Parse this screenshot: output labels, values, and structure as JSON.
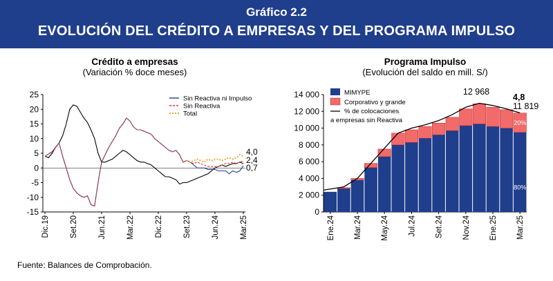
{
  "header": {
    "chart_number": "Gráfico 2.2",
    "title": "EVOLUCIÓN DEL CRÉDITO A EMPRESAS Y DEL PROGRAMA IMPULSO"
  },
  "footer": {
    "source": "Fuente: Balances de Comprobación."
  },
  "colors": {
    "banner": "#1f3e8c",
    "navy": "#1f3e8c",
    "salmon": "#f26a6a",
    "red": "#e8303a",
    "orange": "#f4a226"
  },
  "chart_data": [
    {
      "type": "line",
      "title": "Crédito a empresas",
      "subtitle": "(Variación % doce meses)",
      "ylim": [
        -15,
        25
      ],
      "yticks": [
        "25",
        "20",
        "15",
        "10",
        "5",
        "0",
        "-5",
        "-10",
        "-15"
      ],
      "xticks": [
        "Dic.19",
        "Set.20",
        "Jun.21",
        "Mar.22",
        "Dic.22",
        "Set.23",
        "Jun.24",
        "Mar.25"
      ],
      "legend_position": "top-right",
      "series": [
        {
          "name": "Sin Reactiva ni Impulso",
          "color": "#1f3e8c",
          "points": [
            [
              0,
              4
            ],
            [
              2,
              5.5
            ],
            [
              3,
              7
            ],
            [
              4,
              8.5
            ],
            [
              5,
              4
            ],
            [
              6,
              0
            ],
            [
              7,
              -4
            ],
            [
              8,
              -7
            ],
            [
              9,
              -8.5
            ],
            [
              10,
              -9.5
            ],
            [
              11,
              -10
            ],
            [
              12,
              -9.5
            ],
            [
              13,
              -12.5
            ],
            [
              14,
              -13
            ],
            [
              15,
              -5
            ],
            [
              16,
              2
            ],
            [
              17,
              4.5
            ],
            [
              18,
              7
            ],
            [
              19,
              9
            ],
            [
              20,
              11
            ],
            [
              21,
              13.5
            ],
            [
              22,
              15
            ],
            [
              23,
              17
            ],
            [
              24,
              16
            ],
            [
              25,
              14
            ],
            [
              26,
              13
            ],
            [
              27,
              13
            ],
            [
              28,
              12.5
            ],
            [
              29,
              12
            ],
            [
              30,
              11.5
            ],
            [
              31,
              10
            ],
            [
              32,
              9
            ],
            [
              33,
              8
            ],
            [
              34,
              7
            ],
            [
              35,
              6
            ],
            [
              36,
              5.5
            ],
            [
              37,
              6
            ],
            [
              38,
              4.5
            ],
            [
              39,
              2
            ],
            [
              40,
              2.5
            ],
            [
              41,
              2
            ],
            [
              42,
              1
            ],
            [
              43,
              0
            ],
            [
              44,
              0
            ],
            [
              45,
              0
            ],
            [
              46,
              -0.5
            ],
            [
              47,
              -0.5
            ],
            [
              48,
              -0.5
            ],
            [
              49,
              -1
            ],
            [
              50,
              -1
            ],
            [
              51,
              -1
            ],
            [
              52,
              -2
            ],
            [
              53,
              -1
            ],
            [
              54,
              -1.5
            ],
            [
              55,
              -1
            ],
            [
              56,
              0.7
            ]
          ]
        },
        {
          "name": "Sin Reactiva",
          "color": "#e8303a",
          "points": [
            [
              0,
              4
            ],
            [
              2,
              5.5
            ],
            [
              3,
              7
            ],
            [
              4,
              8.5
            ],
            [
              5,
              4
            ],
            [
              6,
              0
            ],
            [
              7,
              -4
            ],
            [
              8,
              -7
            ],
            [
              9,
              -8.5
            ],
            [
              10,
              -9.5
            ],
            [
              11,
              -10
            ],
            [
              12,
              -9.5
            ],
            [
              13,
              -12.5
            ],
            [
              14,
              -13
            ],
            [
              15,
              -5
            ],
            [
              16,
              2
            ],
            [
              17,
              4.5
            ],
            [
              18,
              7
            ],
            [
              19,
              9
            ],
            [
              20,
              11
            ],
            [
              21,
              13.5
            ],
            [
              22,
              15
            ],
            [
              23,
              17
            ],
            [
              24,
              16
            ],
            [
              25,
              14
            ],
            [
              26,
              13
            ],
            [
              27,
              13
            ],
            [
              28,
              12.5
            ],
            [
              29,
              12
            ],
            [
              30,
              11.5
            ],
            [
              31,
              10
            ],
            [
              32,
              9
            ],
            [
              33,
              8
            ],
            [
              34,
              7
            ],
            [
              35,
              6
            ],
            [
              36,
              5.5
            ],
            [
              37,
              6
            ],
            [
              38,
              4.5
            ],
            [
              39,
              2
            ],
            [
              40,
              2.5
            ],
            [
              41,
              2
            ],
            [
              42,
              1.5
            ],
            [
              43,
              2
            ],
            [
              44,
              1.5
            ],
            [
              45,
              1
            ],
            [
              46,
              0.5
            ],
            [
              47,
              0.5
            ],
            [
              48,
              0.5
            ],
            [
              49,
              0.5
            ],
            [
              50,
              1
            ],
            [
              51,
              1.5
            ],
            [
              52,
              1.5
            ],
            [
              53,
              2
            ],
            [
              54,
              1.5
            ],
            [
              55,
              2
            ],
            [
              56,
              2.4
            ]
          ]
        },
        {
          "name": "Total",
          "color": "#f4a226",
          "points": [
            [
              40,
              2.5
            ],
            [
              41,
              2
            ],
            [
              42,
              2.5
            ],
            [
              43,
              3
            ],
            [
              44,
              2.5
            ],
            [
              45,
              2
            ],
            [
              46,
              3
            ],
            [
              47,
              2.5
            ],
            [
              48,
              3
            ],
            [
              49,
              3
            ],
            [
              50,
              2.5
            ],
            [
              51,
              3
            ],
            [
              52,
              3.5
            ],
            [
              53,
              3
            ],
            [
              54,
              3.5
            ],
            [
              55,
              4.5
            ],
            [
              56,
              4.0
            ]
          ]
        },
        {
          "name": "",
          "color": "#000000",
          "points": [
            [
              0,
              4
            ],
            [
              1,
              3.5
            ],
            [
              2,
              5
            ],
            [
              3,
              7
            ],
            [
              4,
              8.5
            ],
            [
              5,
              11
            ],
            [
              6,
              15
            ],
            [
              7,
              20
            ],
            [
              8,
              21.5
            ],
            [
              9,
              21
            ],
            [
              10,
              19
            ],
            [
              11,
              17
            ],
            [
              12,
              15.5
            ],
            [
              13,
              13
            ],
            [
              14,
              10
            ],
            [
              15,
              5
            ],
            [
              16,
              2
            ],
            [
              17,
              2
            ],
            [
              18,
              2.5
            ],
            [
              19,
              3
            ],
            [
              20,
              4
            ],
            [
              21,
              5
            ],
            [
              22,
              6
            ],
            [
              23,
              5.5
            ],
            [
              24,
              4.5
            ],
            [
              25,
              3.5
            ],
            [
              26,
              2.5
            ],
            [
              27,
              2
            ],
            [
              28,
              2
            ],
            [
              29,
              1.5
            ],
            [
              30,
              1
            ],
            [
              31,
              0
            ],
            [
              32,
              -1
            ],
            [
              33,
              -2
            ],
            [
              34,
              -3
            ],
            [
              35,
              -3
            ],
            [
              36,
              -3.5
            ],
            [
              37,
              -4
            ],
            [
              38,
              -5.5
            ],
            [
              39,
              -5
            ],
            [
              40,
              -5
            ],
            [
              41,
              -4.5
            ],
            [
              42,
              -4
            ],
            [
              43,
              -3.5
            ],
            [
              44,
              -3
            ],
            [
              45,
              -2.5
            ],
            [
              46,
              -2
            ],
            [
              47,
              -1
            ],
            [
              48,
              0
            ],
            [
              49,
              0.5
            ],
            [
              50,
              1
            ],
            [
              51,
              0.5
            ],
            [
              52,
              1
            ],
            [
              53,
              1.5
            ],
            [
              54,
              1.5
            ],
            [
              55,
              2
            ],
            [
              56,
              1.5
            ]
          ]
        }
      ],
      "end_labels": [
        "4,0",
        "2,4",
        "0,7"
      ]
    },
    {
      "type": "bar",
      "title": "Programa Impulso",
      "subtitle": "(Evolución del saldo en mill. S/)",
      "ylim": [
        0,
        14000
      ],
      "yticks": [
        "14 000",
        "12 000",
        "10 000",
        "8 000",
        "6 000",
        "4 000",
        "2 000",
        "0"
      ],
      "xticks": [
        "Ene.24",
        "Mar.24",
        "May.24",
        "Jul.24",
        "Set.24",
        "Nov.24",
        "Ene.25",
        "Mar.25"
      ],
      "legend_position": "top-left",
      "categories": [
        "Ene.24",
        "Feb.24",
        "Mar.24",
        "Abr.24",
        "May.24",
        "Jun.24",
        "Jul.24",
        "Ago.24",
        "Set.24",
        "Oct.24",
        "Nov.24",
        "Dic.24",
        "Ene.25",
        "Feb.25",
        "Mar.25"
      ],
      "series": [
        {
          "name": "MIMYPE",
          "color": "#1f3e8c",
          "values": [
            2400,
            2800,
            3800,
            5300,
            6600,
            8000,
            8300,
            8800,
            9200,
            9700,
            10300,
            10500,
            10200,
            10000,
            9500
          ]
        },
        {
          "name": "Corporativo y grande",
          "color": "#f26a6a",
          "values": [
            0,
            100,
            200,
            500,
            900,
            1400,
            1500,
            1400,
            1400,
            1600,
            2000,
            2400,
            2300,
            2200,
            2300
          ]
        }
      ],
      "line": {
        "name": "% de colocaciones a empresas sin Reactiva",
        "values": [
          2600,
          3000,
          4000,
          5800,
          7600,
          9400,
          10000,
          10400,
          10900,
          11600,
          12500,
          12968,
          12700,
          12300,
          11819
        ]
      },
      "annotations": [
        "12 968",
        "4,8",
        "11 819",
        "20%",
        "80%"
      ]
    }
  ]
}
